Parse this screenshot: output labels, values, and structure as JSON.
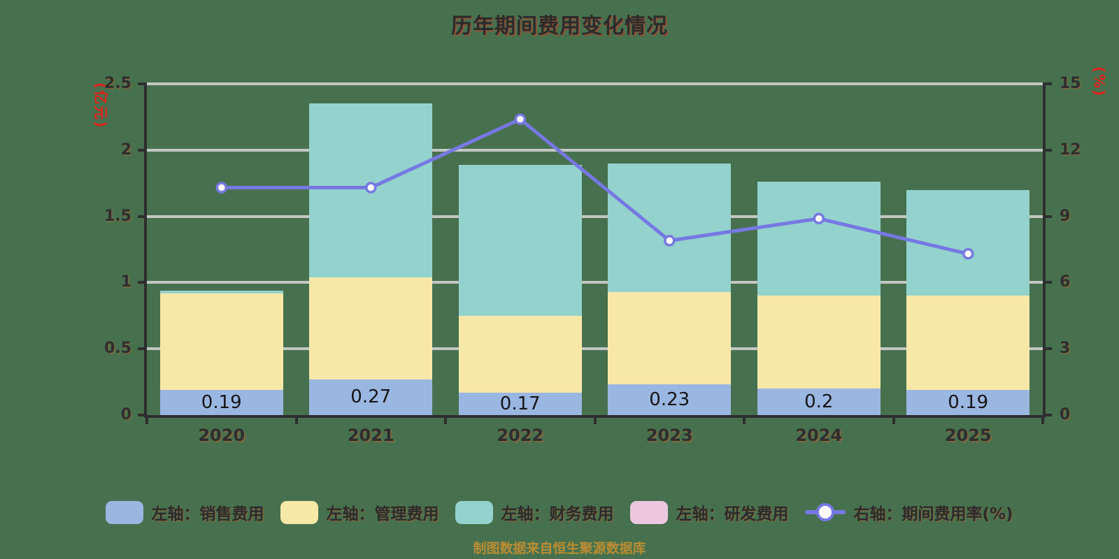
{
  "footer": {
    "text": "制图数据来自恒生聚源数据库"
  },
  "colors": {
    "background": "#47714E",
    "grid_line": "#C3C7C3",
    "axis_line": "#2E2E2E",
    "text_ink": "#2B2B2B",
    "axis_name_red": "#E32119",
    "footer_text": "#BB8D33",
    "sales_bar": "#9AB7E2",
    "management_bar": "#F8E8A8",
    "finance_bar": "#94D2CD",
    "rnd_bar": "#EDC6DF",
    "rate_line": "#7678E3",
    "marker_fill": "#FDFDFF"
  },
  "chart_data": {
    "type": "bar",
    "title": "历年期间费用变化情况",
    "categories": [
      "2020",
      "2021",
      "2022",
      "2023",
      "2024",
      "2025"
    ],
    "series": [
      {
        "key": "sales",
        "name": "左轴：销售费用",
        "type": "bar",
        "stack": true,
        "color": "#9AB7E2",
        "values": [
          0.19,
          0.27,
          0.17,
          0.23,
          0.2,
          0.19
        ],
        "labels": [
          "0.19",
          "0.27",
          "0.17",
          "0.23",
          "0.2",
          "0.19"
        ]
      },
      {
        "key": "management",
        "name": "左轴：管理费用",
        "type": "bar",
        "stack": true,
        "color": "#F8E8A8",
        "values": [
          0.73,
          0.77,
          0.58,
          0.7,
          0.7,
          0.71
        ]
      },
      {
        "key": "finance",
        "name": "左轴：财务费用",
        "type": "bar",
        "stack": true,
        "color": "#94D2CD",
        "values": [
          0.02,
          1.31,
          1.14,
          0.97,
          0.86,
          0.8
        ]
      },
      {
        "key": "rnd",
        "name": "左轴：研发费用",
        "type": "bar",
        "stack": true,
        "color": "#EDC6DF",
        "values": [
          0,
          0,
          0,
          0,
          0,
          0
        ]
      },
      {
        "key": "rate",
        "name": "右轴：期间费用率(%)",
        "type": "line",
        "axis": "right",
        "color": "#7678E3",
        "values": [
          10.3,
          10.3,
          13.4,
          7.9,
          8.9,
          7.3
        ]
      }
    ],
    "stack_totals": [
      0.94,
      2.35,
      1.89,
      1.9,
      1.76,
      1.7
    ],
    "left_axis": {
      "name": "(亿元)",
      "min": 0,
      "max": 2.5,
      "ticks": [
        0,
        0.5,
        1,
        1.5,
        2,
        2.5
      ]
    },
    "right_axis": {
      "name": "(%)",
      "min": 0,
      "max": 15,
      "ticks": [
        0,
        3,
        6,
        9,
        12,
        15
      ]
    },
    "grid": true,
    "legend_position": "bottom"
  }
}
